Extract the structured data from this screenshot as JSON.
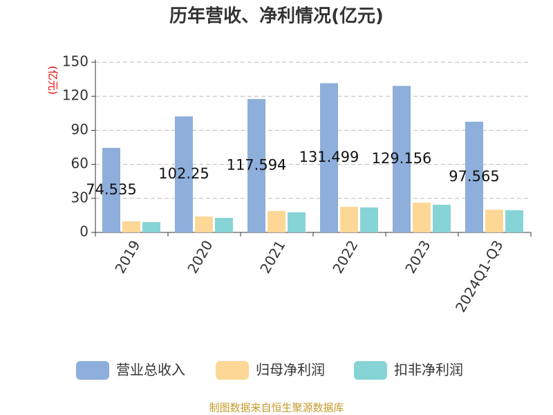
{
  "chart_data": {
    "type": "bar",
    "title": "历年营收、净利情况(亿元)",
    "y_label": "(亿元)",
    "categories": [
      "2019",
      "2020",
      "2021",
      "2022",
      "2023",
      "2024Q1-Q3"
    ],
    "series": [
      {
        "name": "营业总收入",
        "color": "#8eaedb",
        "values": [
          74.535,
          102.25,
          117.594,
          131.499,
          129.156,
          97.565
        ]
      },
      {
        "name": "归母净利润",
        "color": "#fdd796",
        "values": [
          9.8,
          14,
          18.9,
          22.5,
          26.2,
          20
        ]
      },
      {
        "name": "扣非净利润",
        "color": "#86d4d6",
        "values": [
          9.1,
          12.8,
          17.7,
          22,
          24.4,
          19.5
        ]
      }
    ],
    "labeled_series": 0,
    "ylim": [
      0,
      150
    ],
    "yticks": [
      0,
      30,
      60,
      90,
      120,
      150
    ],
    "grid": true,
    "legend": "bottom",
    "source": "制图数据来自恒生聚源数据库"
  }
}
